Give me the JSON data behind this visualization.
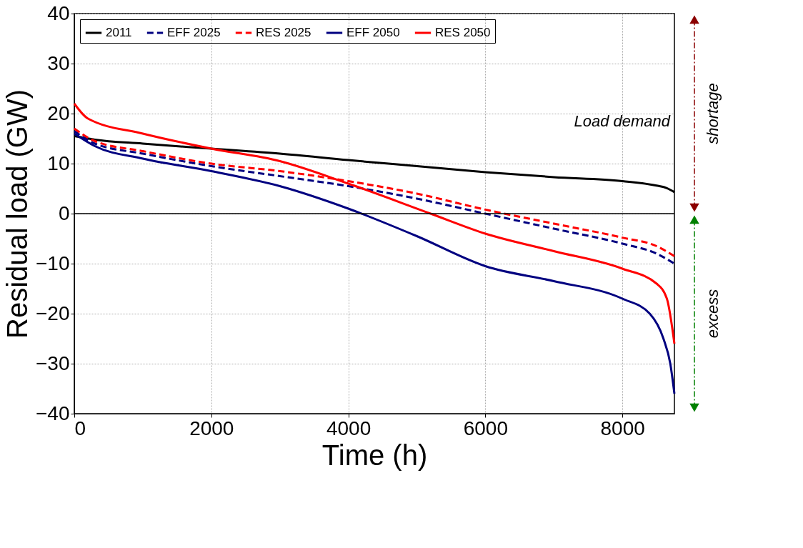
{
  "chart_data": {
    "type": "line",
    "xlabel": "Time (h)",
    "ylabel": "Residual load (GW)",
    "xlim": [
      0,
      8760
    ],
    "xticks": [
      0,
      2000,
      4000,
      6000,
      8000
    ],
    "ylim": [
      -40,
      40
    ],
    "yticks": [
      -40,
      -30,
      -20,
      -10,
      0,
      10,
      20,
      30,
      40
    ],
    "grid": true,
    "legend": "top",
    "marker": "none",
    "series": [
      {
        "name": "2011",
        "color": "#000000",
        "line_style": "solid",
        "x": [
          0,
          300,
          1000,
          2000,
          3000,
          4000,
          5000,
          6000,
          7000,
          8000,
          8500,
          8650,
          8760
        ],
        "values": [
          15.5,
          14.8,
          14,
          13,
          12,
          10.7,
          9.5,
          8.3,
          7.3,
          6.5,
          5.6,
          5.1,
          4.3
        ]
      },
      {
        "name": "EFF 2025",
        "color": "#000080",
        "line_style": "dashed",
        "x": [
          0,
          300,
          1000,
          2000,
          3000,
          4000,
          5000,
          6000,
          7000,
          8000,
          8500,
          8760
        ],
        "values": [
          16.5,
          14,
          12,
          9.5,
          7.5,
          5.5,
          3,
          0,
          -3,
          -6,
          -8,
          -10
        ]
      },
      {
        "name": "RES 2025",
        "color": "#ff0000",
        "line_style": "dashed",
        "x": [
          0,
          300,
          1000,
          2000,
          3000,
          4000,
          5000,
          6000,
          7000,
          8000,
          8500,
          8760
        ],
        "values": [
          17,
          14.5,
          12.5,
          10,
          8.5,
          6.5,
          4,
          0.8,
          -2,
          -4.8,
          -6.5,
          -8.5
        ]
      },
      {
        "name": "EFF 2050",
        "color": "#000080",
        "line_style": "solid",
        "x": [
          0,
          300,
          1000,
          2000,
          3000,
          4000,
          5000,
          6000,
          7000,
          8000,
          8400,
          8600,
          8700,
          8760
        ],
        "values": [
          16,
          13.5,
          11,
          8.5,
          5.5,
          1,
          -4.5,
          -10.5,
          -13.5,
          -17,
          -20,
          -25,
          -30,
          -36
        ]
      },
      {
        "name": "RES 2050",
        "color": "#ff0000",
        "line_style": "solid",
        "x": [
          0,
          200,
          1000,
          2000,
          3000,
          4000,
          5200,
          6000,
          7000,
          8000,
          8500,
          8650,
          8760
        ],
        "values": [
          22,
          19,
          16,
          13,
          10.5,
          6,
          0,
          -4,
          -7.5,
          -11,
          -14,
          -17,
          -26
        ]
      }
    ],
    "ref_lines": [
      {
        "axis": "y",
        "value": 0,
        "label": null,
        "color": "#000000"
      }
    ],
    "annotations": [
      "Load demand",
      "shortage",
      "excess"
    ]
  }
}
